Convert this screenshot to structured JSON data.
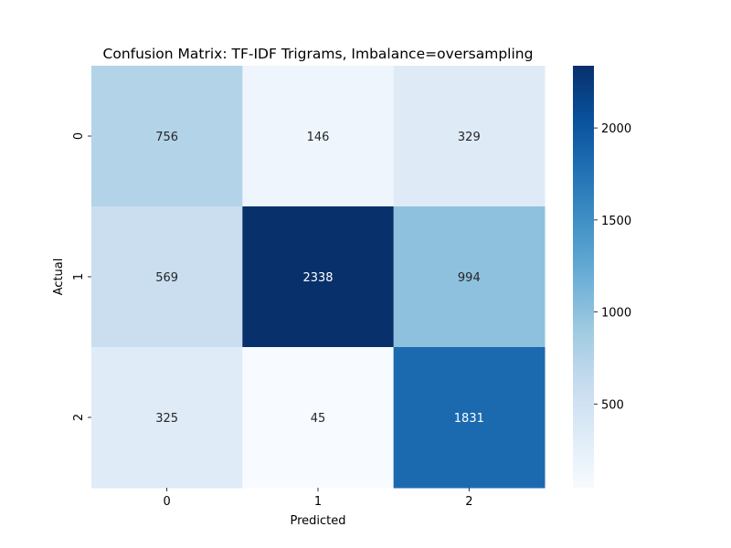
{
  "chart_data": {
    "type": "heatmap",
    "title": "Confusion Matrix: TF-IDF Trigrams, Imbalance=oversampling",
    "xlabel": "Predicted",
    "ylabel": "Actual",
    "x_categories": [
      "0",
      "1",
      "2"
    ],
    "y_categories": [
      "0",
      "1",
      "2"
    ],
    "values": [
      [
        756,
        146,
        329
      ],
      [
        569,
        2338,
        994
      ],
      [
        325,
        45,
        1831
      ]
    ],
    "colormap": "Blues",
    "color_range": [
      45,
      2338
    ],
    "colorbar_ticks": [
      500,
      1000,
      1500,
      2000
    ],
    "colorbar_tick_labels": [
      "500",
      "1000",
      "1500",
      "2000"
    ],
    "annotation_colors": {
      "light_cell": "#262626",
      "dark_cell": "#ffffff"
    }
  }
}
